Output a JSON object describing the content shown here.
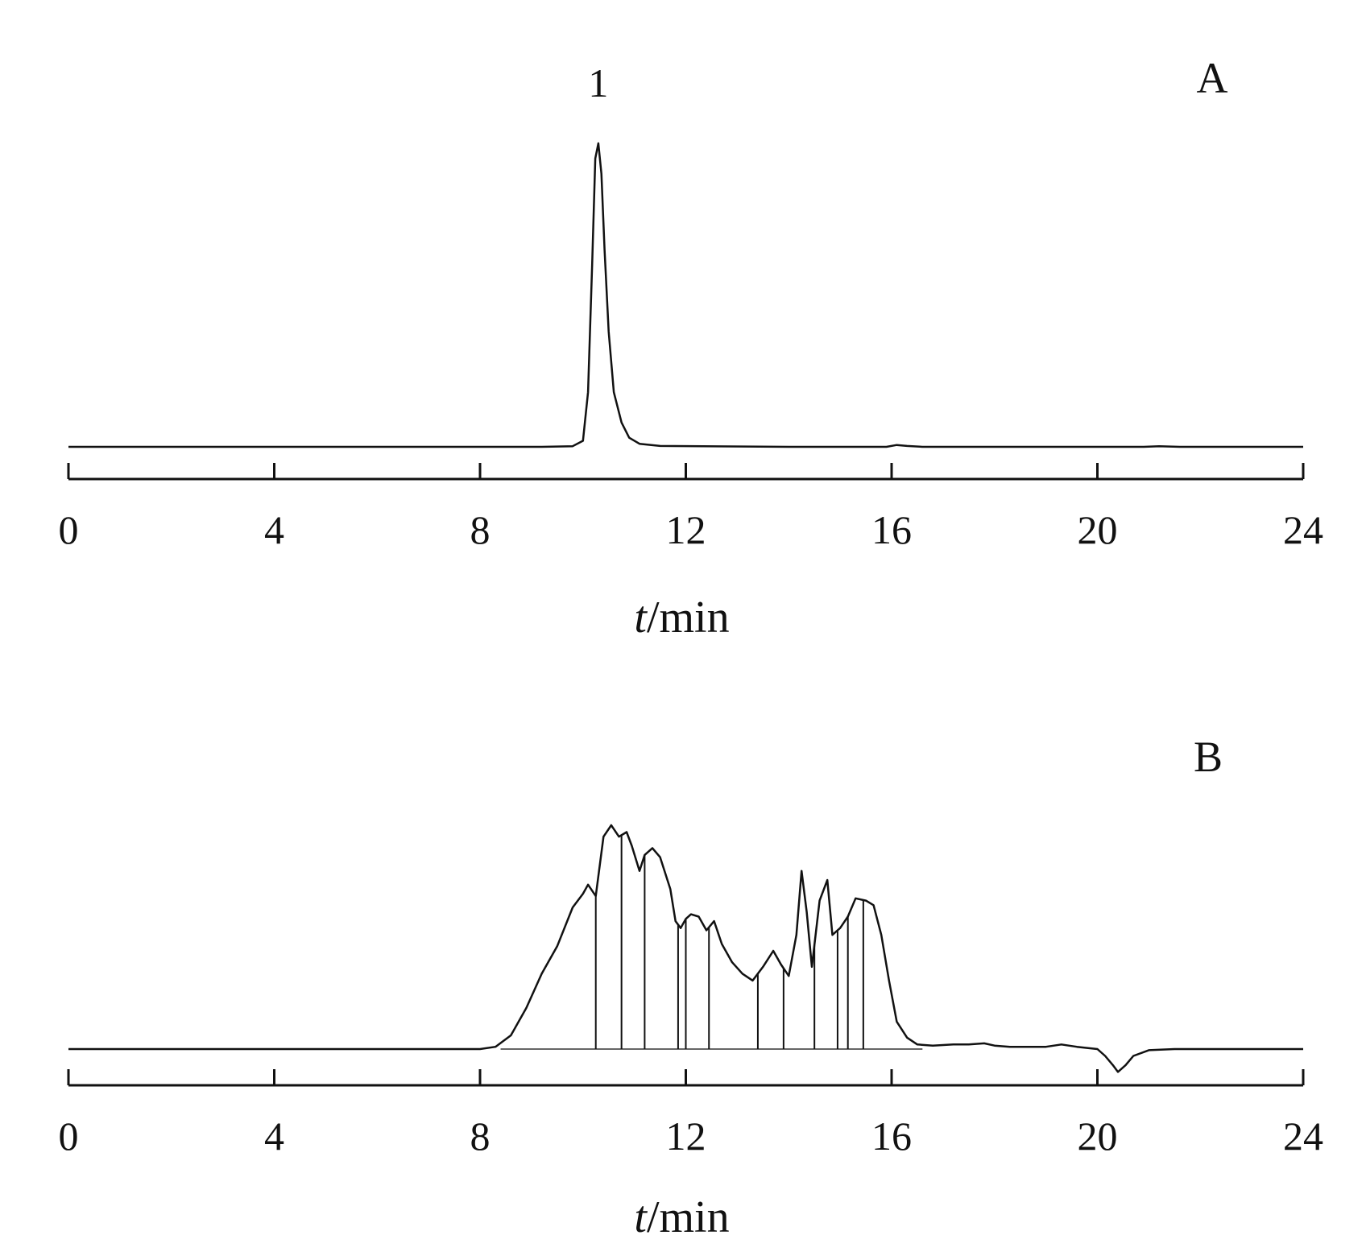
{
  "chart_data": [
    {
      "type": "line",
      "panel_label": "A",
      "xlabel_var": "t",
      "xlabel_unit": "/min",
      "xlim": [
        0,
        24
      ],
      "xticks": [
        0,
        4,
        8,
        12,
        16,
        20,
        24
      ],
      "peak_labels": [
        {
          "text": "1",
          "x": 10.3
        }
      ],
      "series": [
        {
          "x": [
            0,
            8.0,
            9.2,
            9.8,
            10.0,
            10.1,
            10.18,
            10.24,
            10.3,
            10.36,
            10.42,
            10.5,
            10.6,
            10.75,
            10.9,
            11.1,
            11.5,
            14.0,
            15.9,
            16.1,
            16.3,
            16.6,
            20.9,
            21.2,
            21.6,
            24
          ],
          "y": [
            0,
            0,
            0,
            0.002,
            0.02,
            0.18,
            0.6,
            0.95,
            1.0,
            0.9,
            0.65,
            0.38,
            0.18,
            0.08,
            0.03,
            0.01,
            0.003,
            0.0,
            0.0,
            0.006,
            0.003,
            0.0,
            0.0,
            0.002,
            0.0,
            0
          ]
        }
      ],
      "ylim": [
        -0.05,
        1.17
      ]
    },
    {
      "type": "line",
      "panel_label": "B",
      "xlabel_var": "t",
      "xlabel_unit": "/min",
      "xlim": [
        0,
        24
      ],
      "xticks": [
        0,
        4,
        8,
        12,
        16,
        20,
        24
      ],
      "series": [
        {
          "x": [
            0,
            8.0,
            8.3,
            8.6,
            8.9,
            9.2,
            9.5,
            9.8,
            10.0,
            10.1,
            10.25,
            10.4,
            10.55,
            10.7,
            10.85,
            10.95,
            11.1,
            11.2,
            11.35,
            11.5,
            11.7,
            11.8,
            11.9,
            12.0,
            12.1,
            12.25,
            12.4,
            12.55,
            12.7,
            12.9,
            13.1,
            13.3,
            13.5,
            13.7,
            13.85,
            14.0,
            14.15,
            14.25,
            14.35,
            14.45,
            14.6,
            14.75,
            14.85,
            15.0,
            15.15,
            15.3,
            15.5,
            15.65,
            15.8,
            15.95,
            16.1,
            16.3,
            16.5,
            16.8,
            17.2,
            17.5,
            17.8,
            18.0,
            18.3,
            19.0,
            19.3,
            19.6,
            20.0,
            20.15,
            20.3,
            20.4,
            20.55,
            20.7,
            21.0,
            21.5,
            22.0,
            24
          ],
          "y": [
            0,
            0,
            0.01,
            0.06,
            0.18,
            0.33,
            0.45,
            0.62,
            0.68,
            0.72,
            0.67,
            0.93,
            0.98,
            0.93,
            0.95,
            0.89,
            0.78,
            0.85,
            0.88,
            0.84,
            0.7,
            0.56,
            0.53,
            0.57,
            0.59,
            0.58,
            0.52,
            0.56,
            0.46,
            0.38,
            0.33,
            0.3,
            0.36,
            0.43,
            0.37,
            0.32,
            0.5,
            0.78,
            0.6,
            0.36,
            0.65,
            0.74,
            0.5,
            0.53,
            0.58,
            0.66,
            0.65,
            0.63,
            0.5,
            0.3,
            0.12,
            0.05,
            0.02,
            0.015,
            0.02,
            0.02,
            0.025,
            0.015,
            0.01,
            0.01,
            0.02,
            0.01,
            0.0,
            -0.03,
            -0.07,
            -0.1,
            -0.07,
            -0.03,
            -0.005,
            0,
            0,
            0
          ]
        }
      ],
      "integration_drops": [
        10.25,
        10.75,
        11.2,
        11.85,
        12.0,
        12.45,
        13.4,
        13.9,
        14.5,
        14.95,
        15.15,
        15.45
      ],
      "ylim": [
        -0.14,
        1.3
      ]
    }
  ]
}
